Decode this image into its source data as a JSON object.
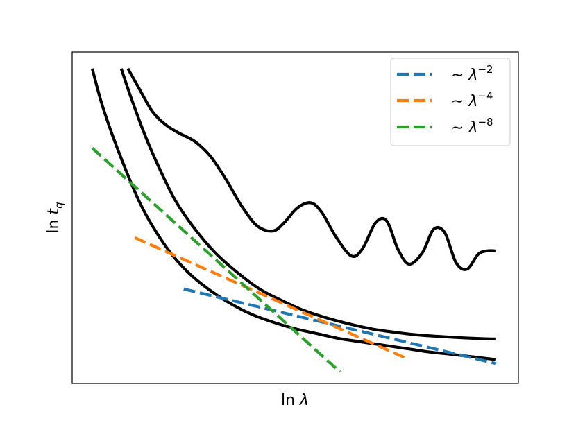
{
  "chart_data": {
    "type": "line",
    "xlabel": "ln λ",
    "ylabel": "ln t_q",
    "ticks": false,
    "grid": false,
    "legend_position": "top-right",
    "xlim": [
      0,
      10
    ],
    "ylim": [
      0,
      10
    ],
    "series": [
      {
        "kind": "curve",
        "style": "solid",
        "color": "#000000",
        "x": [
          0.45,
          0.65,
          0.9,
          1.2,
          1.5,
          1.8,
          2.2,
          2.6,
          3.0,
          3.5,
          4.0,
          4.5,
          5.0,
          5.5,
          6.0,
          6.5,
          7.0,
          7.5,
          8.0,
          8.5,
          9.0,
          9.5
        ],
        "y": [
          9.5,
          8.5,
          7.5,
          6.45,
          5.5,
          4.75,
          3.95,
          3.35,
          2.9,
          2.45,
          2.1,
          1.85,
          1.65,
          1.5,
          1.35,
          1.25,
          1.15,
          1.05,
          0.95,
          0.88,
          0.8,
          0.72
        ]
      },
      {
        "kind": "curve",
        "style": "solid",
        "color": "#000000",
        "x": [
          1.1,
          1.3,
          1.6,
          1.9,
          2.3,
          2.7,
          3.2,
          3.7,
          4.2,
          4.7,
          5.2,
          5.7,
          6.2,
          6.7,
          7.2,
          7.7,
          8.2,
          8.7,
          9.2,
          9.5
        ],
        "y": [
          9.5,
          8.7,
          7.6,
          6.65,
          5.55,
          4.75,
          3.95,
          3.35,
          2.85,
          2.5,
          2.2,
          1.98,
          1.8,
          1.65,
          1.55,
          1.47,
          1.42,
          1.38,
          1.35,
          1.34
        ]
      },
      {
        "kind": "curve",
        "style": "solid",
        "color": "#000000",
        "x": [
          1.25,
          1.5,
          1.8,
          2.1,
          2.4,
          2.75,
          3.1,
          3.45,
          3.8,
          4.15,
          4.5,
          4.75,
          5.05,
          5.35,
          5.6,
          5.9,
          6.25,
          6.5,
          6.8,
          7.05,
          7.3,
          7.55,
          7.85,
          8.1,
          8.35,
          8.6,
          8.85,
          9.1,
          9.3,
          9.5
        ],
        "y": [
          9.5,
          8.9,
          8.2,
          7.8,
          7.55,
          7.3,
          6.85,
          6.15,
          5.35,
          4.75,
          4.6,
          4.85,
          5.3,
          5.45,
          5.15,
          4.45,
          3.85,
          4.05,
          4.85,
          4.9,
          4.05,
          3.6,
          3.95,
          4.65,
          4.55,
          3.65,
          3.45,
          3.9,
          4.0,
          4.0
        ]
      },
      {
        "kind": "asymptote",
        "name": "~ λ^−2",
        "style": "dashed",
        "color": "#1f77b4",
        "x": [
          2.5,
          9.5
        ],
        "y": [
          2.85,
          0.6
        ]
      },
      {
        "kind": "asymptote",
        "name": "~ λ^−4",
        "style": "dashed",
        "color": "#ff7f0e",
        "x": [
          1.4,
          7.5
        ],
        "y": [
          4.4,
          0.75
        ]
      },
      {
        "kind": "asymptote",
        "name": "~ λ^−8",
        "style": "dashed",
        "color": "#2ca02c",
        "x": [
          0.45,
          6.0
        ],
        "y": [
          7.1,
          0.35
        ]
      }
    ],
    "legend": [
      {
        "prefix": "∼ λ",
        "exponent": "−2",
        "color": "#1f77b4"
      },
      {
        "prefix": "∼ λ",
        "exponent": "−4",
        "color": "#ff7f0e"
      },
      {
        "prefix": "∼ λ",
        "exponent": "−8",
        "color": "#2ca02c"
      }
    ]
  },
  "labels": {
    "x_prefix": "ln ",
    "x_symbol": "λ",
    "y_prefix": "ln ",
    "y_symbol": "t",
    "y_subscript": "q"
  }
}
